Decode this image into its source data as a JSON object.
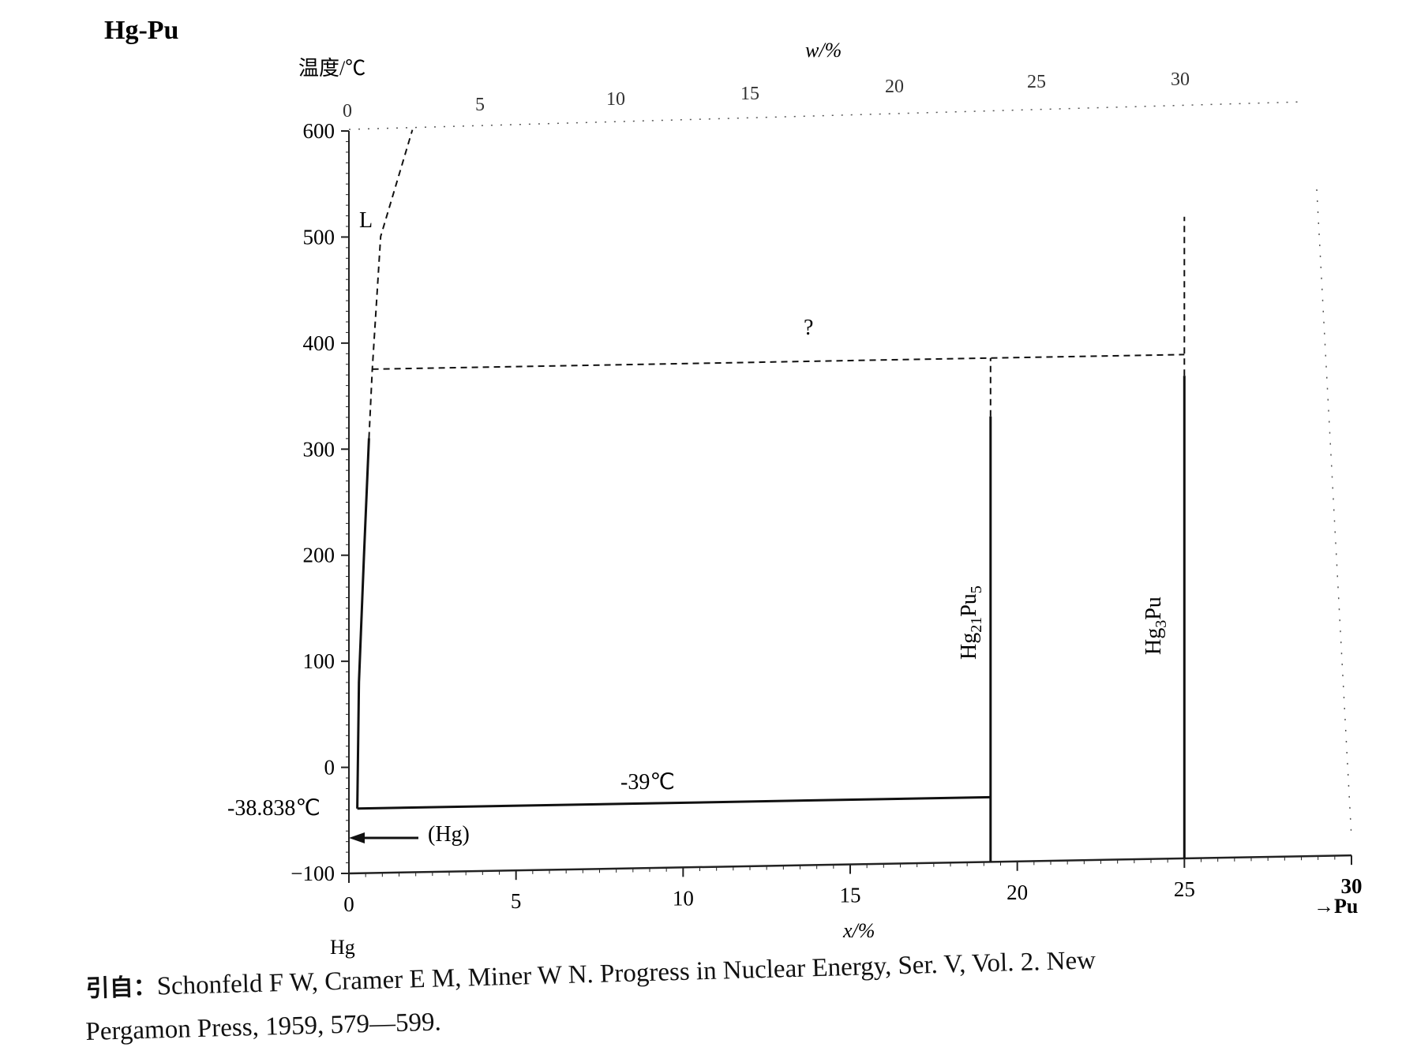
{
  "chart_data": {
    "type": "phase-diagram",
    "title": "Hg-Pu",
    "ylabel": "温度/℃",
    "xlabel": "x/%",
    "top_axis_label": "w/%",
    "ylim": [
      -100,
      600
    ],
    "xlim": [
      0,
      30
    ],
    "y_ticks": [
      "600",
      "500",
      "400",
      "300",
      "200",
      "100",
      "0",
      "-100"
    ],
    "x_ticks": [
      "0",
      "5",
      "10",
      "15",
      "20",
      "25",
      "30"
    ],
    "top_ticks": [
      "0",
      "5",
      "10",
      "15",
      "20",
      "25",
      "30"
    ],
    "left_component": "Hg",
    "right_component": "→Pu",
    "special_temperature_label": "-38.838℃",
    "special_temperature_value": -38.838,
    "phases": {
      "liquid": "L",
      "hg_solid": "(Hg)",
      "compound_1": {
        "name": "Hg21Pu5",
        "base": "Hg",
        "sub1": "21",
        "mid": "Pu",
        "sub2": "5",
        "x": 19.2
      },
      "compound_2": {
        "name": "Hg3Pu",
        "base": "Hg",
        "sub1": "3",
        "mid": "Pu",
        "x": 25
      }
    },
    "annotations": {
      "eutectic": "-39℃",
      "uncertain": "?"
    },
    "lines": {
      "liquidus_solid": [
        [
          0.25,
          -39
        ],
        [
          0.3,
          80
        ],
        [
          0.45,
          200
        ],
        [
          0.6,
          310
        ]
      ],
      "liquidus_dashed": [
        [
          0.6,
          310
        ],
        [
          0.7,
          375
        ],
        [
          0.95,
          500
        ],
        [
          1.9,
          600
        ]
      ],
      "isotherm_dashed": [
        [
          0.7,
          375
        ],
        [
          19.2,
          375
        ],
        [
          25,
          375
        ]
      ],
      "eutectic_line": [
        [
          0.25,
          -39
        ],
        [
          19.2,
          -39
        ]
      ],
      "hg21pu5_solid": [
        [
          19.2,
          -100
        ],
        [
          19.2,
          320
        ]
      ],
      "hg21pu5_dashed": [
        [
          19.2,
          320
        ],
        [
          19.2,
          375
        ]
      ],
      "hg3pu_solid": [
        [
          25,
          -100
        ],
        [
          25,
          355
        ]
      ],
      "hg3pu_dashed": [
        [
          25,
          355
        ],
        [
          25,
          505
        ]
      ]
    }
  },
  "citation": {
    "prefix": "引自：",
    "line1": "Schonfeld F W, Cramer E M, Miner W N. Progress in Nuclear Energy, Ser. V, Vol. 2. New",
    "line2": "Pergamon Press, 1959, 579—599."
  }
}
